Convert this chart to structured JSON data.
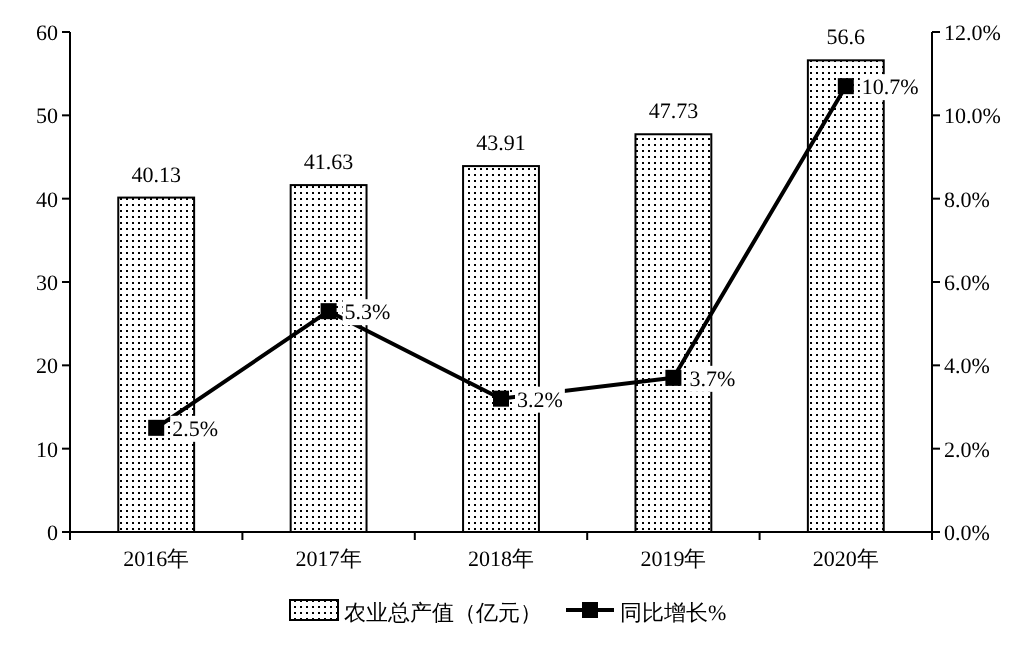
{
  "chart_data": {
    "type": "bar",
    "categories": [
      "2016年",
      "2017年",
      "2018年",
      "2019年",
      "2020年"
    ],
    "series": [
      {
        "name": "农业总产值（亿元）",
        "color": "#000000",
        "values": [
          40.13,
          41.63,
          43.91,
          47.73,
          56.6
        ],
        "value_labels": [
          "40.13",
          "41.63",
          "43.91",
          "47.73",
          "56.6"
        ]
      },
      {
        "name": "同比增长%",
        "type": "line",
        "axis": "y2",
        "color": "#000000",
        "values": [
          2.5,
          5.3,
          3.2,
          3.7,
          10.7
        ],
        "value_labels": [
          "2.5%",
          "5.3%",
          "3.2%",
          "3.7%",
          "10.7%"
        ]
      }
    ],
    "ylim": [
      0,
      60
    ],
    "yticks": [
      0,
      10,
      20,
      30,
      40,
      50,
      60
    ],
    "y2lim": [
      0,
      12
    ],
    "y2ticks": [
      {
        "value": 0,
        "label": "0.0%"
      },
      {
        "value": 2,
        "label": "2.0%"
      },
      {
        "value": 4,
        "label": "4.0%"
      },
      {
        "value": 6,
        "label": "6.0%"
      },
      {
        "value": 8,
        "label": "8.0%"
      },
      {
        "value": 10,
        "label": "10.0%"
      },
      {
        "value": 12,
        "label": "12.0%"
      }
    ],
    "marker": "square",
    "legend": "bottom",
    "grid": false
  }
}
